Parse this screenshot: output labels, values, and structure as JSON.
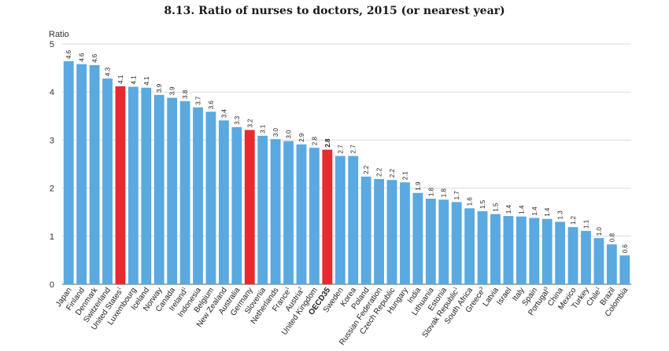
{
  "chart_data": {
    "type": "bar",
    "title": "8.13. Ratio of nurses to doctors, 2015 (or nearest year)",
    "ylabel": "Ratio",
    "ylim": [
      0,
      5
    ],
    "yticks": [
      0,
      1,
      2,
      3,
      4,
      5
    ],
    "grid": true,
    "colors": {
      "default": "#5aa9e0",
      "highlight": "#e8292f",
      "grid": "#d9d9d9"
    },
    "highlighted": [
      "United States",
      "Germany",
      "OECD35"
    ],
    "bold_categories": [
      "OECD35"
    ],
    "categories": [
      "Japan",
      "Finland",
      "Denmark",
      "Switzerland",
      "United States",
      "Luxembourg",
      "Iceland",
      "Norway",
      "Canada",
      "Ireland",
      "Indonesia",
      "Belgium",
      "New Zealand",
      "Australia",
      "Germany",
      "Slovenia",
      "Netherlands",
      "France",
      "Austria",
      "United Kingdom",
      "OECD35",
      "Sweden",
      "Korea",
      "Poland",
      "Russian Federation",
      "Czech Republic",
      "Hungary",
      "India",
      "Lithuania",
      "Estonia",
      "Slovak Republic",
      "South Africa",
      "Greece",
      "Latvia",
      "Israel",
      "Italy",
      "Spain",
      "Portugal",
      "China",
      "Mexico",
      "Turkey",
      "Chile",
      "Brazil",
      "Colombia"
    ],
    "category_superscripts": [
      "",
      "",
      "",
      "",
      "1",
      "",
      "",
      "",
      "",
      "1",
      "",
      "",
      "",
      "",
      "",
      "",
      "",
      "1",
      "2",
      "",
      "",
      "",
      "",
      "",
      "",
      "",
      "",
      "",
      "",
      "",
      "1",
      "",
      "3",
      "",
      "",
      "",
      "",
      "3",
      "",
      "",
      "",
      "1",
      "",
      ""
    ],
    "values": [
      4.64,
      4.58,
      4.56,
      4.28,
      4.12,
      4.11,
      4.09,
      3.94,
      3.88,
      3.81,
      3.68,
      3.59,
      3.41,
      3.27,
      3.21,
      3.09,
      3.02,
      2.98,
      2.91,
      2.84,
      2.8,
      2.67,
      2.67,
      2.24,
      2.19,
      2.17,
      2.12,
      1.9,
      1.78,
      1.76,
      1.71,
      1.58,
      1.52,
      1.46,
      1.42,
      1.41,
      1.38,
      1.36,
      1.3,
      1.19,
      1.11,
      0.96,
      0.83,
      0.6
    ],
    "value_labels": [
      "4.6",
      "4.6",
      "4.6",
      "4.3",
      "4.1",
      "4.1",
      "4.1",
      "3.9",
      "3.9",
      "3.8",
      "3.7",
      "3.6",
      "3.4",
      "3.3",
      "3.2",
      "3.1",
      "3.0",
      "3.0",
      "2.9",
      "2.8",
      "2.8",
      "2.7",
      "2.7",
      "2.2",
      "2.2",
      "2.2",
      "2.1",
      "1.9",
      "1.8",
      "1.8",
      "1.7",
      "1.6",
      "1.5",
      "1.5",
      "1.4",
      "1.4",
      "1.4",
      "1.4",
      "1.3",
      "1.2",
      "1.1",
      "1.0",
      "0.8",
      "0.6"
    ]
  }
}
